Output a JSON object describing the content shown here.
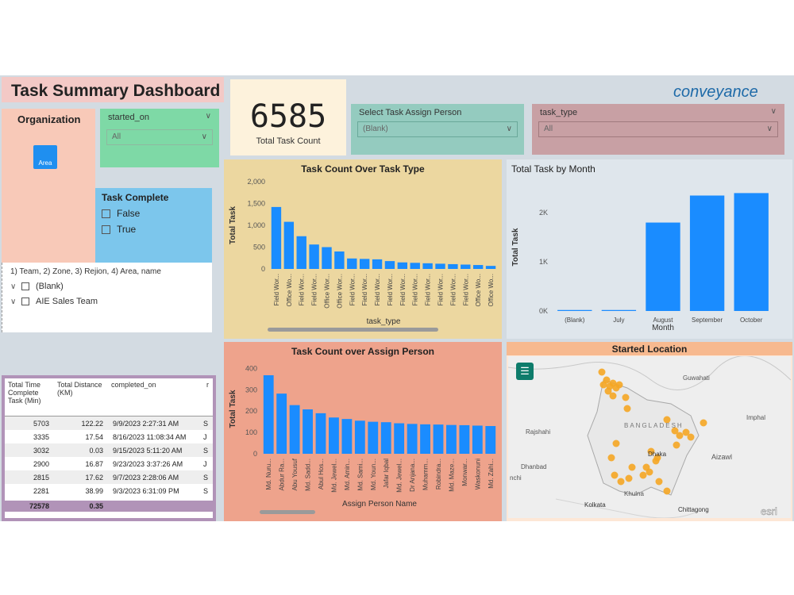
{
  "header": {
    "title": "Task Summary Dashboard",
    "logo_text": "conveyance"
  },
  "organization": {
    "title": "Organization",
    "area_button": "Area"
  },
  "started_on": {
    "label": "started_on",
    "value": "All"
  },
  "task_complete": {
    "title": "Task Complete",
    "options": [
      "False",
      "True"
    ]
  },
  "tree": {
    "header": "1) Team, 2) Zone, 3) Rejion, 4) Area, name",
    "items": [
      "(Blank)",
      "AIE Sales Team"
    ]
  },
  "kpi": {
    "value": "6585",
    "label": "Total Task Count"
  },
  "assign_slicer": {
    "label": "Select Task Assign Person",
    "value": "(Blank)"
  },
  "type_slicer": {
    "label": "task_type",
    "value": "All"
  },
  "table": {
    "headers": [
      "Total Time Complete Task (Min)",
      "Total Distance (KM)",
      "completed_on",
      "r"
    ],
    "rows": [
      [
        "5703",
        "122.22",
        "9/9/2023 2:27:31 AM",
        "S"
      ],
      [
        "3335",
        "17.54",
        "8/16/2023 11:08:34 AM",
        "J"
      ],
      [
        "3032",
        "0.03",
        "9/15/2023 5:11:20 AM",
        "S"
      ],
      [
        "2900",
        "16.87",
        "9/23/2023 3:37:26 AM",
        "J"
      ],
      [
        "2815",
        "17.62",
        "9/7/2023 2:28:06 AM",
        "S"
      ],
      [
        "2281",
        "38.99",
        "9/3/2023 6:31:09 PM",
        "S"
      ]
    ],
    "total": [
      "72578",
      "0.35"
    ]
  },
  "chart_data": [
    {
      "type": "bar",
      "title": "Task Count Over Task Type",
      "xlabel": "task_type",
      "ylabel": "Total Task",
      "ylim": [
        0,
        2000
      ],
      "yticks": [
        "0",
        "500",
        "1,000",
        "1,500",
        "2,000"
      ],
      "categories": [
        "Field Wor...",
        "Office Wo...",
        "Field Wor...",
        "Field Wor...",
        "Office Wor...",
        "Office Wor...",
        "Field Wor...",
        "Field Wor...",
        "Field Wor...",
        "Field Wor...",
        "Field Wor...",
        "Field Wor...",
        "Field Wor...",
        "Field Wor...",
        "Field Wor...",
        "Field Wor...",
        "Office Wo...",
        "Office Wo..."
      ],
      "values": [
        1420,
        1080,
        750,
        560,
        500,
        400,
        240,
        230,
        220,
        180,
        150,
        140,
        130,
        120,
        110,
        100,
        90,
        70
      ],
      "bar_color": "#1a8cff"
    },
    {
      "type": "bar",
      "title": "Total Task by Month",
      "xlabel": "Month",
      "ylabel": "Total Task",
      "ylim": [
        0,
        2600
      ],
      "yticks": [
        "0K",
        "1K",
        "2K"
      ],
      "categories": [
        "(Blank)",
        "July",
        "August",
        "September",
        "October"
      ],
      "values": [
        20,
        20,
        1800,
        2350,
        2400
      ],
      "bar_color": "#1a8cff"
    },
    {
      "type": "bar",
      "title": "Task Count over Assign Person",
      "xlabel": "Assign Person Name",
      "ylabel": "Total Task",
      "ylim": [
        0,
        420
      ],
      "yticks": [
        "0",
        "100",
        "200",
        "300",
        "400"
      ],
      "categories": [
        "Md. Nuru...",
        "Abdur Ra...",
        "Abu Yousuf",
        "Md. Sadd...",
        "Abul Hos...",
        "Md. Jewel...",
        "Md. Amin...",
        "Md. Sami...",
        "Md. Youn...",
        "Jafar Iqbal",
        "Md. Jewel...",
        "Dr Anjana...",
        "Muhamm...",
        "Robindra...",
        "Md. Maze...",
        "Monwar...",
        "Waskonuni",
        "Md. Zahi..."
      ],
      "values": [
        368,
        282,
        228,
        208,
        190,
        170,
        163,
        155,
        150,
        148,
        143,
        140,
        138,
        137,
        135,
        134,
        132,
        130
      ],
      "bar_color": "#1a8cff"
    }
  ],
  "map": {
    "title": "Started Location",
    "labels": [
      "Guwahati",
      "BANGLADESH",
      "Imphal",
      "Rajshahi",
      "Dhaka",
      "Aizawl",
      "Dhanbad",
      "Khulna",
      "Kolkata",
      "Chittagong",
      "nchi"
    ],
    "attribution": "esri",
    "point_color": "#f5a623"
  }
}
